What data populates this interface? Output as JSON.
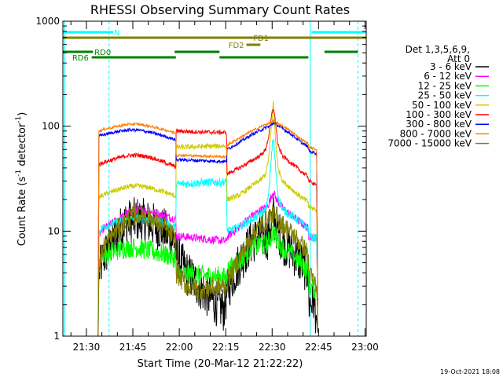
{
  "chart_data": {
    "type": "line",
    "title": "RHESSI Observing Summary Count Rates",
    "xlabel": "Start Time (20-Mar-12 21:22:22)",
    "ylabel_main": "Count Rate (s",
    "ylabel_exp": "-1",
    "ylabel_mid": " detector",
    "ylabel_end": ")",
    "footer_date": "19-Oct-2021 18:08",
    "x_unit": "minutes since 21:22:22",
    "xlim": [
      0,
      98
    ],
    "ylim": [
      1,
      1000
    ],
    "yscale": "log",
    "xticks": [
      {
        "t": 7.6,
        "label": "21:30"
      },
      {
        "t": 22.6,
        "label": "21:45"
      },
      {
        "t": 37.6,
        "label": "22:00"
      },
      {
        "t": 52.6,
        "label": "22:15"
      },
      {
        "t": 67.6,
        "label": "22:30"
      },
      {
        "t": 82.6,
        "label": "22:45"
      },
      {
        "t": 97.6,
        "label": "23:00"
      }
    ],
    "yticks": [
      {
        "v": 1,
        "label": "1"
      },
      {
        "v": 10,
        "label": "10"
      },
      {
        "v": 100,
        "label": "100"
      },
      {
        "v": 1000,
        "label": "1000"
      }
    ],
    "legend": {
      "header1": "Det 1,3,5,6,9,",
      "header2": "Att 0",
      "entries": [
        {
          "label": "3 - 6 keV",
          "color": "#000000"
        },
        {
          "label": "6 - 12 keV",
          "color": "#ff00ff"
        },
        {
          "label": "12 - 25 keV",
          "color": "#00ff00"
        },
        {
          "label": "25 - 50 keV",
          "color": "#00ffff"
        },
        {
          "label": "50 - 100 keV",
          "color": "#cccc00"
        },
        {
          "label": "100 - 300 keV",
          "color": "#ff0000"
        },
        {
          "label": "300 - 800 keV",
          "color": "#0000ff"
        },
        {
          "label": "800 - 7000 keV",
          "color": "#ff8000"
        },
        {
          "label": "7000 - 15000 keV",
          "color": "#808000"
        }
      ]
    },
    "flags": [
      {
        "label": "N",
        "color": "#00ffff",
        "segments": [
          [
            0,
            16.3
          ],
          [
            80.3,
            98
          ]
        ],
        "row": 1,
        "label_at": 16.5
      },
      {
        "label": "FD1",
        "color": "#808000",
        "segments": [
          [
            0,
            98
          ]
        ],
        "row": 2,
        "label_at": 61.5
      },
      {
        "label": "FD2",
        "color": "#808000",
        "segments": [
          [
            59.3,
            63.8
          ]
        ],
        "row": 3,
        "label_at": 53.5
      },
      {
        "label": "RD0",
        "color": "#008000",
        "segments": [
          [
            0,
            9.7
          ],
          [
            36.1,
            50.6
          ],
          [
            84.5,
            95.3
          ]
        ],
        "row": 4,
        "label_at": 10.2
      },
      {
        "label": "RD6",
        "color": "#008000",
        "segments": [
          [
            9.3,
            36.5
          ],
          [
            50.6,
            79.3
          ]
        ],
        "row": 5,
        "label_at": 3.0
      }
    ],
    "vlines": [
      {
        "t": 0.6,
        "color": "#00ffff",
        "style": "solid"
      },
      {
        "t": 14.9,
        "color": "#00ffff",
        "style": "dashed"
      },
      {
        "t": 79.9,
        "color": "#00ffff",
        "style": "solid"
      },
      {
        "t": 95.3,
        "color": "#00ffff",
        "style": "dashed"
      }
    ],
    "series": [
      {
        "name": "3 - 6 keV",
        "color": "#000000",
        "noise": 0.22,
        "points": [
          [
            11.4,
            1.0
          ],
          [
            11.6,
            4.0
          ],
          [
            13,
            5.5
          ],
          [
            17,
            9
          ],
          [
            20,
            12
          ],
          [
            24,
            13
          ],
          [
            28,
            12
          ],
          [
            33,
            10
          ],
          [
            36,
            8
          ],
          [
            36.6,
            6
          ],
          [
            40,
            4
          ],
          [
            44,
            3
          ],
          [
            47,
            2.4
          ],
          [
            50,
            2
          ],
          [
            52,
            1.8
          ],
          [
            53.5,
            3
          ],
          [
            57,
            5
          ],
          [
            61,
            8
          ],
          [
            64,
            9
          ],
          [
            66,
            8.5
          ],
          [
            67,
            11
          ],
          [
            68,
            14
          ],
          [
            69,
            11
          ],
          [
            71,
            8
          ],
          [
            74,
            6.5
          ],
          [
            77,
            5
          ],
          [
            79.3,
            4
          ],
          [
            79.4,
            2
          ],
          [
            81,
            2.2
          ],
          [
            82,
            1.5
          ],
          [
            82.4,
            1.0
          ]
        ]
      },
      {
        "name": "6 - 12 keV",
        "color": "#ff00ff",
        "noise": 0.04,
        "points": [
          [
            11.4,
            1.0
          ],
          [
            11.6,
            9
          ],
          [
            13,
            10.5
          ],
          [
            17,
            12.5
          ],
          [
            21,
            15
          ],
          [
            24,
            16
          ],
          [
            28,
            15.5
          ],
          [
            33,
            14
          ],
          [
            36.5,
            13
          ],
          [
            36.6,
            9
          ],
          [
            40,
            8.8
          ],
          [
            45,
            8.5
          ],
          [
            50,
            8.2
          ],
          [
            52.9,
            8
          ],
          [
            53,
            8.8
          ],
          [
            57,
            11
          ],
          [
            61,
            14
          ],
          [
            64,
            16
          ],
          [
            66,
            17
          ],
          [
            67,
            20
          ],
          [
            68,
            24
          ],
          [
            69,
            20
          ],
          [
            71,
            16.5
          ],
          [
            74,
            14
          ],
          [
            77,
            12
          ],
          [
            79.3,
            10.5
          ],
          [
            79.4,
            9
          ],
          [
            82,
            8.5
          ],
          [
            82.4,
            1.0
          ]
        ]
      },
      {
        "name": "12 - 25 keV",
        "color": "#00ff00",
        "noise": 0.1,
        "points": [
          [
            11.4,
            1.0
          ],
          [
            11.6,
            5.5
          ],
          [
            13,
            6
          ],
          [
            17,
            6.5
          ],
          [
            21,
            7
          ],
          [
            24,
            7
          ],
          [
            28,
            6.5
          ],
          [
            33,
            6
          ],
          [
            36.5,
            5.5
          ],
          [
            36.6,
            4
          ],
          [
            40,
            3.9
          ],
          [
            45,
            3.8
          ],
          [
            50,
            3.7
          ],
          [
            52.9,
            3.6
          ],
          [
            53,
            4.2
          ],
          [
            57,
            5.2
          ],
          [
            61,
            7
          ],
          [
            64,
            7.5
          ],
          [
            66,
            7.5
          ],
          [
            67,
            8.5
          ],
          [
            68,
            10
          ],
          [
            69,
            8.5
          ],
          [
            71,
            7
          ],
          [
            74,
            6
          ],
          [
            77,
            5
          ],
          [
            79.3,
            4.2
          ],
          [
            79.4,
            3
          ],
          [
            82,
            2.8
          ],
          [
            82.4,
            1.0
          ]
        ]
      },
      {
        "name": "25 - 50 keV",
        "color": "#00ffff",
        "noise": 0.04,
        "points": [
          [
            11.4,
            1.0
          ],
          [
            11.6,
            10
          ],
          [
            13,
            11
          ],
          [
            17,
            12
          ],
          [
            21,
            13
          ],
          [
            24,
            13.3
          ],
          [
            28,
            13
          ],
          [
            33,
            12
          ],
          [
            36.5,
            11
          ],
          [
            36.6,
            28
          ],
          [
            45,
            29
          ],
          [
            52.9,
            29.5
          ],
          [
            53,
            10
          ],
          [
            57,
            11
          ],
          [
            61,
            13
          ],
          [
            64,
            14.5
          ],
          [
            65.5,
            16
          ],
          [
            66.5,
            22
          ],
          [
            67.5,
            60
          ],
          [
            68,
            78
          ],
          [
            68.6,
            45
          ],
          [
            69.5,
            22
          ],
          [
            71,
            16
          ],
          [
            74,
            14
          ],
          [
            77,
            12
          ],
          [
            79.3,
            10.5
          ],
          [
            79.4,
            9
          ],
          [
            82,
            8.5
          ],
          [
            82.4,
            1.0
          ]
        ]
      },
      {
        "name": "50 - 100 keV",
        "color": "#cccc00",
        "noise": 0.025,
        "points": [
          [
            11.4,
            1.0
          ],
          [
            11.6,
            21
          ],
          [
            13,
            22
          ],
          [
            17,
            24.5
          ],
          [
            21,
            26.5
          ],
          [
            24,
            27
          ],
          [
            28,
            26
          ],
          [
            33,
            23.5
          ],
          [
            36.5,
            21.5
          ],
          [
            36.6,
            63
          ],
          [
            45,
            64
          ],
          [
            52.9,
            65
          ],
          [
            53,
            20
          ],
          [
            57,
            22
          ],
          [
            61,
            27
          ],
          [
            64,
            31
          ],
          [
            65.5,
            35
          ],
          [
            66.5,
            50
          ],
          [
            67.5,
            110
          ],
          [
            68,
            175
          ],
          [
            68.6,
            80
          ],
          [
            69.5,
            40
          ],
          [
            71,
            30
          ],
          [
            74,
            25
          ],
          [
            77,
            21
          ],
          [
            79.3,
            19
          ],
          [
            79.4,
            17
          ],
          [
            82,
            16
          ],
          [
            82.4,
            1.0
          ]
        ]
      },
      {
        "name": "100 - 300 keV",
        "color": "#ff0000",
        "noise": 0.02,
        "points": [
          [
            11.4,
            1.0
          ],
          [
            11.6,
            43
          ],
          [
            13,
            45
          ],
          [
            17,
            49
          ],
          [
            21,
            52.5
          ],
          [
            24,
            53
          ],
          [
            28,
            51
          ],
          [
            33,
            45
          ],
          [
            36.5,
            41
          ],
          [
            36.6,
            90
          ],
          [
            45,
            88
          ],
          [
            52.9,
            87
          ],
          [
            53,
            35
          ],
          [
            57,
            40
          ],
          [
            61,
            47
          ],
          [
            64,
            53
          ],
          [
            65.5,
            60
          ],
          [
            66.5,
            80
          ],
          [
            67.5,
            130
          ],
          [
            68,
            150
          ],
          [
            68.6,
            115
          ],
          [
            69.5,
            65
          ],
          [
            71,
            52
          ],
          [
            74,
            44
          ],
          [
            77,
            37
          ],
          [
            79.3,
            33
          ],
          [
            79.4,
            30
          ],
          [
            82,
            28
          ],
          [
            82.4,
            1.0
          ]
        ]
      },
      {
        "name": "300 - 800 keV",
        "color": "#0000ff",
        "noise": 0.015,
        "points": [
          [
            11.4,
            1.0
          ],
          [
            11.6,
            80
          ],
          [
            13,
            83
          ],
          [
            17,
            88
          ],
          [
            21,
            92
          ],
          [
            24,
            92
          ],
          [
            28,
            88
          ],
          [
            33,
            80
          ],
          [
            36.5,
            74
          ],
          [
            36.6,
            48
          ],
          [
            45,
            47
          ],
          [
            52.9,
            46
          ],
          [
            53,
            60
          ],
          [
            57,
            70
          ],
          [
            61,
            83
          ],
          [
            64,
            92
          ],
          [
            66,
            98
          ],
          [
            67,
            100
          ],
          [
            68,
            108
          ],
          [
            69,
            104
          ],
          [
            71,
            95
          ],
          [
            74,
            83
          ],
          [
            77,
            70
          ],
          [
            79.3,
            63
          ],
          [
            79.4,
            58
          ],
          [
            82,
            55
          ],
          [
            82.4,
            1.0
          ]
        ]
      },
      {
        "name": "800 - 7000 keV",
        "color": "#ff8000",
        "noise": 0.012,
        "points": [
          [
            11.4,
            1.0
          ],
          [
            11.6,
            90
          ],
          [
            13,
            93
          ],
          [
            17,
            99
          ],
          [
            21,
            104
          ],
          [
            24,
            105
          ],
          [
            28,
            100
          ],
          [
            33,
            92
          ],
          [
            36.5,
            86
          ],
          [
            36.6,
            53
          ],
          [
            45,
            52
          ],
          [
            52.9,
            51
          ],
          [
            53,
            66
          ],
          [
            57,
            77
          ],
          [
            61,
            90
          ],
          [
            64,
            99
          ],
          [
            66,
            105
          ],
          [
            67,
            108
          ],
          [
            68,
            112
          ],
          [
            69,
            109
          ],
          [
            71,
            100
          ],
          [
            74,
            88
          ],
          [
            77,
            75
          ],
          [
            79.3,
            68
          ],
          [
            79.4,
            63
          ],
          [
            82,
            60
          ],
          [
            82.4,
            1.0
          ]
        ]
      },
      {
        "name": "7000 - 15000 keV",
        "color": "#808000",
        "noise": 0.1,
        "points": [
          [
            11.4,
            1.0
          ],
          [
            11.6,
            4.5
          ],
          [
            13,
            7
          ],
          [
            17,
            10
          ],
          [
            21,
            13
          ],
          [
            24,
            14.5
          ],
          [
            28,
            13.5
          ],
          [
            33,
            10.5
          ],
          [
            36.5,
            8.5
          ],
          [
            36.6,
            4
          ],
          [
            40,
            3
          ],
          [
            45,
            2.8
          ],
          [
            50,
            2.9
          ],
          [
            52.9,
            3
          ],
          [
            53,
            3.2
          ],
          [
            57,
            5.5
          ],
          [
            61,
            9
          ],
          [
            64,
            11.5
          ],
          [
            66,
            13
          ],
          [
            67,
            13.5
          ],
          [
            68,
            14.5
          ],
          [
            69,
            13
          ],
          [
            71,
            11.5
          ],
          [
            74,
            9.5
          ],
          [
            77,
            7.5
          ],
          [
            79.3,
            6
          ],
          [
            79.4,
            4
          ],
          [
            82,
            3
          ],
          [
            82.4,
            1.0
          ]
        ]
      }
    ]
  }
}
